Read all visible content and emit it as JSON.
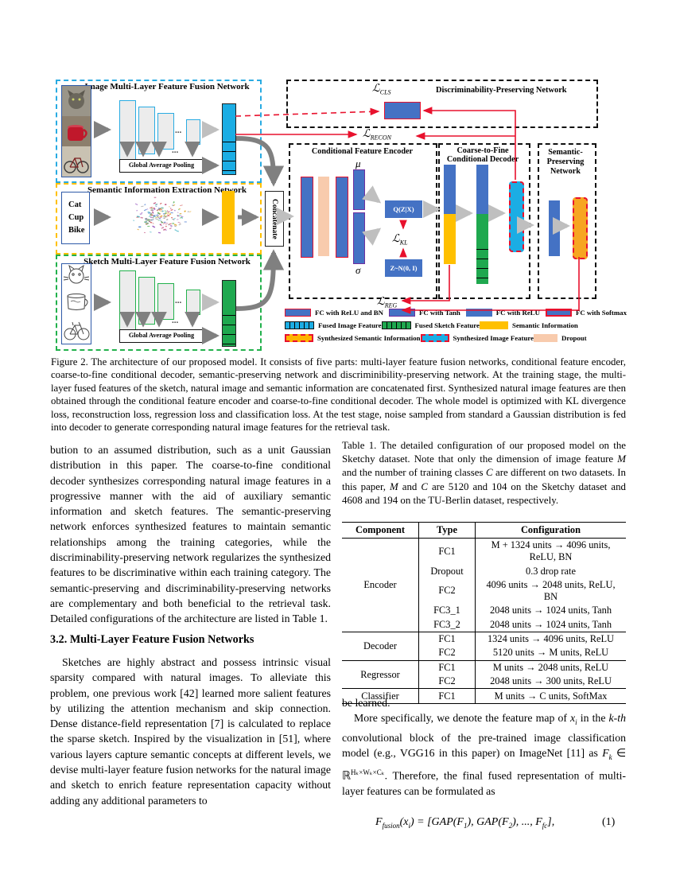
{
  "figure": {
    "panels": {
      "image_fusion": {
        "title": "Image Multi-Layer Feature Fusion Network",
        "gap_label": "Global Average Pooling",
        "dots": "..."
      },
      "semantic": {
        "title": "Semantic Information Extraction Network",
        "words": [
          "Cat",
          "Cup",
          "Bike"
        ],
        "scatter_colors": [
          "#d04b4b",
          "#4b7bd0",
          "#4bb04b",
          "#e0a020",
          "#9a5bc0",
          "#50b8c8",
          "#c05080",
          "#888888"
        ]
      },
      "sketch_fusion": {
        "title": "Sketch Multi-Layer Feature Fusion Network",
        "gap_label": "Global Average Pooling",
        "dots": "..."
      },
      "concatenate_label": "Concatenate",
      "encoder": {
        "title": "Conditional Feature Encoder",
        "mu": "μ",
        "sigma": "σ",
        "qzx": "Q(Z|X)",
        "zn": "Z~N(0, I)"
      },
      "decoder": {
        "title_line1": "Coarse-to-Fine",
        "title_line2": "Conditional Decoder"
      },
      "semantic_preserving": {
        "title_line1": "Semantic-",
        "title_line2": "Preserving",
        "title_line3": "Network"
      },
      "discriminability": {
        "title": "Discriminability-Preserving Network"
      },
      "losses": {
        "symbol": "ℒ",
        "cls": "CLS",
        "recon": "RECON",
        "kl": "KL",
        "reg": "REG"
      }
    },
    "legend": [
      {
        "row": 1,
        "swatch": "fc-relu-bn",
        "label": "FC with ReLU and BN"
      },
      {
        "row": 1,
        "swatch": "fc-tanh",
        "label": "FC with Tanh"
      },
      {
        "row": 1,
        "swatch": "fc-relu",
        "label": "FC with ReLU"
      },
      {
        "row": 1,
        "swatch": "fc-softmax",
        "label": "FC with Softmax"
      },
      {
        "row": 2,
        "swatch": "fused-image",
        "label": "Fused Image Feature"
      },
      {
        "row": 2,
        "swatch": "fused-sketch",
        "label": "Fused Sketch Feature"
      },
      {
        "row": 2,
        "swatch": "semantic-info",
        "label": "Semantic Information"
      },
      {
        "row": 3,
        "swatch": "synth-semantic",
        "label": "Synthesized Semantic Information"
      },
      {
        "row": 3,
        "swatch": "synth-image",
        "label": "Synthesized Image Feature"
      },
      {
        "row": 3,
        "swatch": "dropout",
        "label": "Dropout"
      }
    ],
    "colors": {
      "fc_blue": "#4472c4",
      "fused_image_cyan": "#1bade4",
      "fused_sketch_green": "#1fa84f",
      "semantic_yellow": "#ffc000",
      "synth_semantic_orange": "#f7a521",
      "dropout_peach": "#f8cbad",
      "loss_red": "#e8112d",
      "tanh_purple": "#7030a0"
    }
  },
  "caption": "Figure 2. The architecture of our proposed model.  It consists of five parts: multi-layer feature fusion networks, conditional feature encoder, coarse-to-fine conditional decoder, semantic-preserving network and discriminibility-preserving network.  At the training stage, the multi-layer fused features of the sketch, natural image and semantic information are concatenated first.  Synthesized natural image features are then obtained through the conditional feature encoder and coarse-to-fine conditional decoder.  The whole model is optimized with KL divergence loss, reconstruction loss, regression loss and classification loss.  At the test stage, noise sampled from standard a Gaussian distribution is fed into decoder to generate corresponding natural image features for the retrieval task.",
  "left_column": {
    "para1": "bution to an assumed distribution, such as a unit Gaussian distribution in this paper.  The coarse-to-fine conditional decoder synthesizes corresponding natural image features in a progressive manner with the aid of auxiliary semantic information and sketch features.  The semantic-preserving network enforces synthesized features to maintain semantic relationships among the training categories, while the discriminability-preserving network regularizes the synthesized features to be discriminative within each training category.  The semantic-preserving and discriminability-preserving networks are complementary and both beneficial to the retrieval task. Detailed configurations of the architecture are listed in Table 1.",
    "heading": "3.2. Multi-Layer Feature Fusion Networks",
    "para2": "Sketches are highly abstract and possess intrinsic visual sparsity compared with natural images.  To alleviate this problem, one previous work [42] learned more salient features by utilizing the attention mechanism and skip connection.  Dense distance-field representation [7] is calculated to replace the sparse sketch.  Inspired by the visualization in [51], where various layers capture semantic concepts at different levels, we devise multi-layer feature fusion networks for the natural image and sketch to enrich feature representation capacity without adding any additional parameters to"
  },
  "right_column": {
    "table_caption": {
      "p0": "Table 1. The detailed configuration of our proposed model on the Sketchy dataset. Note that only the dimension of image feature ",
      "m1": "M",
      "p1": " and the number of training classes ",
      "c1": "C",
      "p2": " are different on two datasets. In this paper, ",
      "m2": "M",
      "p3": " and ",
      "c2": "C",
      "p4": " are 5120 and 104 on the Sketchy dataset and 4608 and 194 on the TU-Berlin dataset, respectively."
    },
    "table": {
      "headers": {
        "component": "Component",
        "type": "Type",
        "config": "Configuration"
      },
      "groups": [
        {
          "component": "Encoder",
          "rows": [
            {
              "type": "FC1",
              "config": "M + 1324 units → 4096 units, ReLU, BN"
            },
            {
              "type": "Dropout",
              "config": "0.3 drop rate"
            },
            {
              "type": "FC2",
              "config": "4096 units → 2048 units, ReLU, BN"
            },
            {
              "type": "FC3_1",
              "config": "2048 units → 1024 units, Tanh"
            },
            {
              "type": "FC3_2",
              "config": "2048 units → 1024 units, Tanh"
            }
          ]
        },
        {
          "component": "Decoder",
          "rows": [
            {
              "type": "FC1",
              "config": "1324 units → 4096 units, ReLU"
            },
            {
              "type": "FC2",
              "config": "5120 units → M units, ReLU"
            }
          ]
        },
        {
          "component": "Regressor",
          "rows": [
            {
              "type": "FC1",
              "config": "M units → 2048 units, ReLU"
            },
            {
              "type": "FC2",
              "config": "2048 units → 300 units, ReLU"
            }
          ]
        },
        {
          "component": "Classifier",
          "rows": [
            {
              "type": "FC1",
              "config": "M units → C units, SoftMax"
            }
          ]
        }
      ]
    },
    "be_learned": "be learned.",
    "para": {
      "p0": "More specifically, we denote the feature map of ",
      "i0": "x",
      "s0": "i",
      "p1": " in the ",
      "i1": "k-th",
      "p2": " convolutional block of the pre-trained image classification model (e.g., VGG16 in this paper) on ImageNet [11] as ",
      "i2": "F",
      "s2": "k",
      "p3": " ∈ ℝ",
      "sup": "Hₖ×Wₖ×Cₖ",
      "p4": ". Therefore, the final fused representation of multi-layer features can be formulated as"
    },
    "eq": {
      "p0": "F",
      "s0": "fusion",
      "p1": "(x",
      "s1": "i",
      "p2": ") = [GAP(F",
      "s2": "1",
      "p3": "), GAP(F",
      "s3": "2",
      "p4": "), ..., F",
      "s4": "fc",
      "p5": "],",
      "num": "(1)"
    }
  }
}
